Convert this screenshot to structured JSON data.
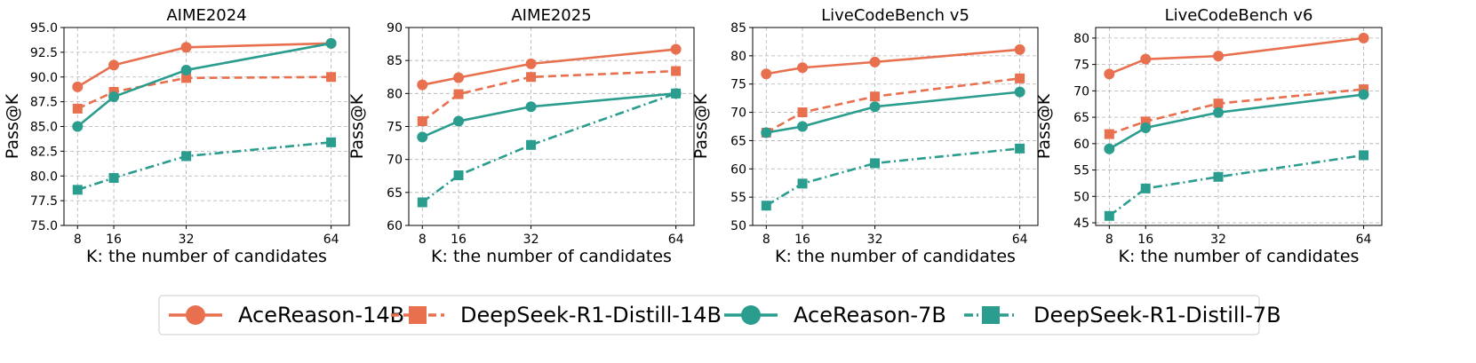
{
  "chart_data": {
    "type": "line",
    "legend": {
      "placement": "bottom-center",
      "entries": [
        {
          "name": "AceReason-14B",
          "color": "#E8704F",
          "marker": "circle",
          "linestyle": "solid"
        },
        {
          "name": "DeepSeek-R1-Distill-14B",
          "color": "#E8704F",
          "marker": "square",
          "linestyle": "dashed"
        },
        {
          "name": "AceReason-7B",
          "color": "#2A9D8F",
          "marker": "circle",
          "linestyle": "solid"
        },
        {
          "name": "DeepSeek-R1-Distill-7B",
          "color": "#2A9D8F",
          "marker": "square",
          "linestyle": "dashdot"
        }
      ]
    },
    "panels": [
      {
        "title": "AIME2024",
        "xlabel": "K: the number of candidates",
        "ylabel": "Pass@K",
        "x": [
          8,
          16,
          32,
          64
        ],
        "xticks": [
          "8",
          "16",
          "32",
          "64"
        ],
        "xlim": [
          5,
          68
        ],
        "ylim": [
          75.0,
          95.0
        ],
        "yticks": [
          "75.0",
          "77.5",
          "80.0",
          "82.5",
          "85.0",
          "87.5",
          "90.0",
          "92.5",
          "95.0"
        ],
        "series": [
          {
            "name": "AceReason-14B",
            "values": [
              89.0,
              91.2,
              93.0,
              93.4
            ]
          },
          {
            "name": "DeepSeek-R1-Distill-14B",
            "values": [
              86.8,
              88.5,
              89.9,
              90.0
            ]
          },
          {
            "name": "AceReason-7B",
            "values": [
              85.0,
              88.0,
              90.7,
              93.4
            ]
          },
          {
            "name": "DeepSeek-R1-Distill-7B",
            "values": [
              78.6,
              79.8,
              82.0,
              83.4
            ]
          }
        ]
      },
      {
        "title": "AIME2025",
        "xlabel": "K: the number of candidates",
        "ylabel": "Pass@K",
        "x": [
          8,
          16,
          32,
          64
        ],
        "xticks": [
          "8",
          "16",
          "32",
          "64"
        ],
        "xlim": [
          5,
          68
        ],
        "ylim": [
          60,
          90
        ],
        "yticks": [
          "60",
          "65",
          "70",
          "75",
          "80",
          "85",
          "90"
        ],
        "series": [
          {
            "name": "AceReason-14B",
            "values": [
              81.3,
              82.4,
              84.5,
              86.7
            ]
          },
          {
            "name": "DeepSeek-R1-Distill-14B",
            "values": [
              75.8,
              79.9,
              82.5,
              83.4
            ]
          },
          {
            "name": "AceReason-7B",
            "values": [
              73.4,
              75.8,
              78.0,
              80.0
            ]
          },
          {
            "name": "DeepSeek-R1-Distill-7B",
            "values": [
              63.5,
              67.6,
              72.2,
              80.0
            ]
          }
        ]
      },
      {
        "title": "LiveCodeBench v5",
        "xlabel": "K: the number of candidates",
        "ylabel": "Pass@K",
        "x": [
          8,
          16,
          32,
          64
        ],
        "xticks": [
          "8",
          "16",
          "32",
          "64"
        ],
        "xlim": [
          5,
          68
        ],
        "ylim": [
          50,
          85
        ],
        "yticks": [
          "50",
          "55",
          "60",
          "65",
          "70",
          "75",
          "80",
          "85"
        ],
        "series": [
          {
            "name": "AceReason-14B",
            "values": [
              76.8,
              77.9,
              78.9,
              81.1
            ]
          },
          {
            "name": "DeepSeek-R1-Distill-14B",
            "values": [
              66.4,
              70.0,
              72.8,
              76.0
            ]
          },
          {
            "name": "AceReason-7B",
            "values": [
              66.4,
              67.5,
              71.0,
              73.6
            ]
          },
          {
            "name": "DeepSeek-R1-Distill-7B",
            "values": [
              53.5,
              57.4,
              61.0,
              63.6
            ]
          }
        ]
      },
      {
        "title": "LiveCodeBench v6",
        "xlabel": "K: the number of candidates",
        "ylabel": "Pass@K",
        "x": [
          8,
          16,
          32,
          64
        ],
        "xticks": [
          "8",
          "16",
          "32",
          "64"
        ],
        "xlim": [
          5,
          68
        ],
        "ylim": [
          44.5,
          82
        ],
        "yticks": [
          "45",
          "50",
          "55",
          "60",
          "65",
          "70",
          "75",
          "80"
        ],
        "series": [
          {
            "name": "AceReason-14B",
            "values": [
              73.2,
              76.0,
              76.6,
              80.0
            ]
          },
          {
            "name": "DeepSeek-R1-Distill-14B",
            "values": [
              61.8,
              64.2,
              67.6,
              70.3
            ]
          },
          {
            "name": "AceReason-7B",
            "values": [
              59.0,
              63.0,
              65.9,
              69.3
            ]
          },
          {
            "name": "DeepSeek-R1-Distill-7B",
            "values": [
              46.3,
              51.5,
              53.7,
              57.8
            ]
          }
        ]
      }
    ]
  }
}
